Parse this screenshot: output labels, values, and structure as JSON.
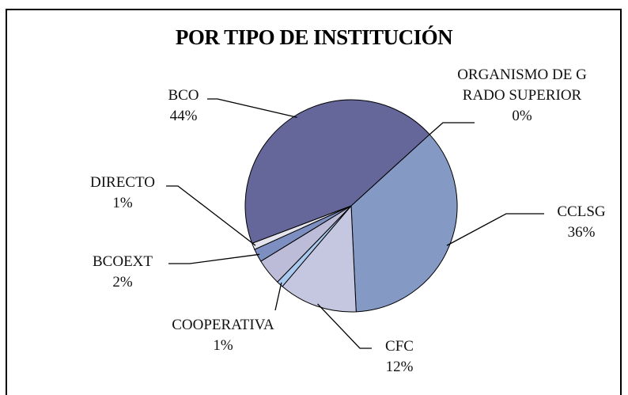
{
  "chart_data": {
    "type": "pie",
    "title": "POR TIPO DE INSTITUCIÓN",
    "categories": [
      "ORGANISMO DE GRADO SUPERIOR",
      "CCLSG",
      "CFC",
      "COOPERATIVA",
      null,
      "BCOEXT",
      "DIRECTO",
      "BCO"
    ],
    "values": [
      0,
      36,
      12,
      1,
      4,
      2,
      1,
      44
    ],
    "value_labels": [
      "0%",
      "36%",
      "12%",
      "1%",
      null,
      "2%",
      "1%",
      "44%"
    ],
    "colors": [
      "#333333",
      "#8499c4",
      "#c5c6e0",
      "#a9c9ef",
      "#bcbcd8",
      "#7c8fc0",
      "#e4e4ef",
      "#65669a"
    ]
  }
}
